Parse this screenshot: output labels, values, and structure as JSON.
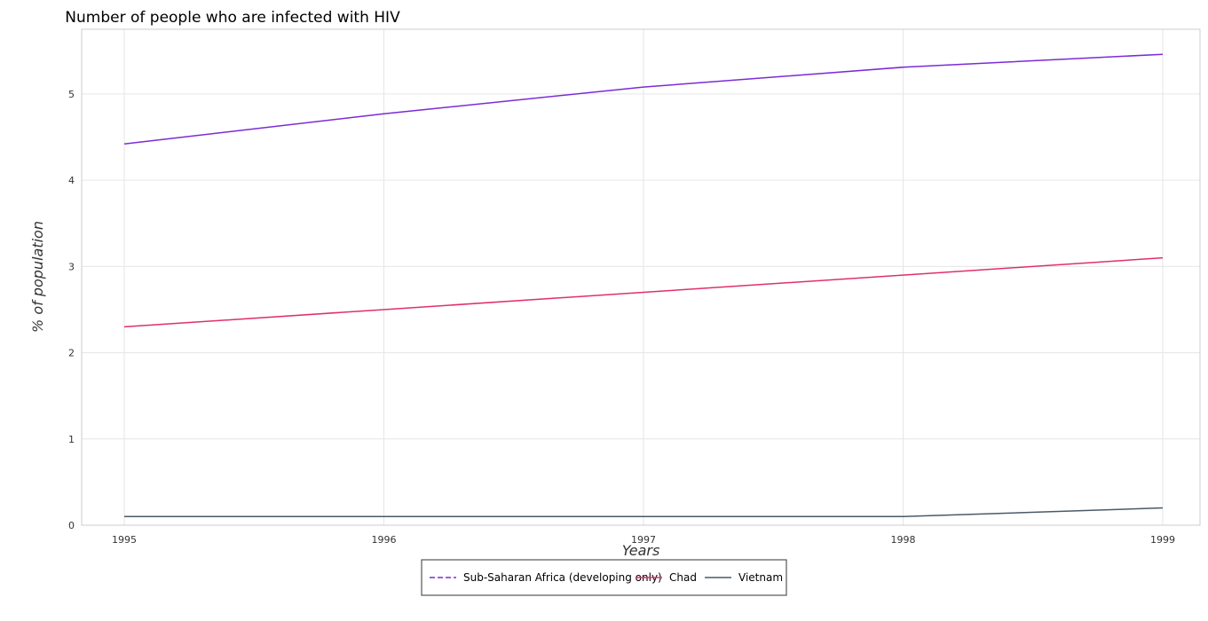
{
  "chart_data": {
    "type": "line",
    "title": "Number of people who are infected with HIV",
    "xlabel": "Years",
    "ylabel": "% of population",
    "categories": [
      "1995",
      "1996",
      "1997",
      "1998",
      "1999"
    ],
    "yticks": [
      "0",
      "1",
      "2",
      "3",
      "4",
      "5"
    ],
    "ylim": [
      0,
      5.75
    ],
    "grid": true,
    "legend_position": "bottom-center",
    "series": [
      {
        "name": "Sub-Saharan Africa (developing only)",
        "color": "#7b2bd6",
        "values": [
          4.42,
          4.77,
          5.08,
          5.31,
          5.46
        ]
      },
      {
        "name": "Chad",
        "color": "#e0306a",
        "values": [
          2.3,
          2.5,
          2.7,
          2.9,
          3.1
        ]
      },
      {
        "name": "Vietnam",
        "color": "#4a5a68",
        "values": [
          0.1,
          0.1,
          0.1,
          0.1,
          0.2
        ]
      }
    ]
  }
}
